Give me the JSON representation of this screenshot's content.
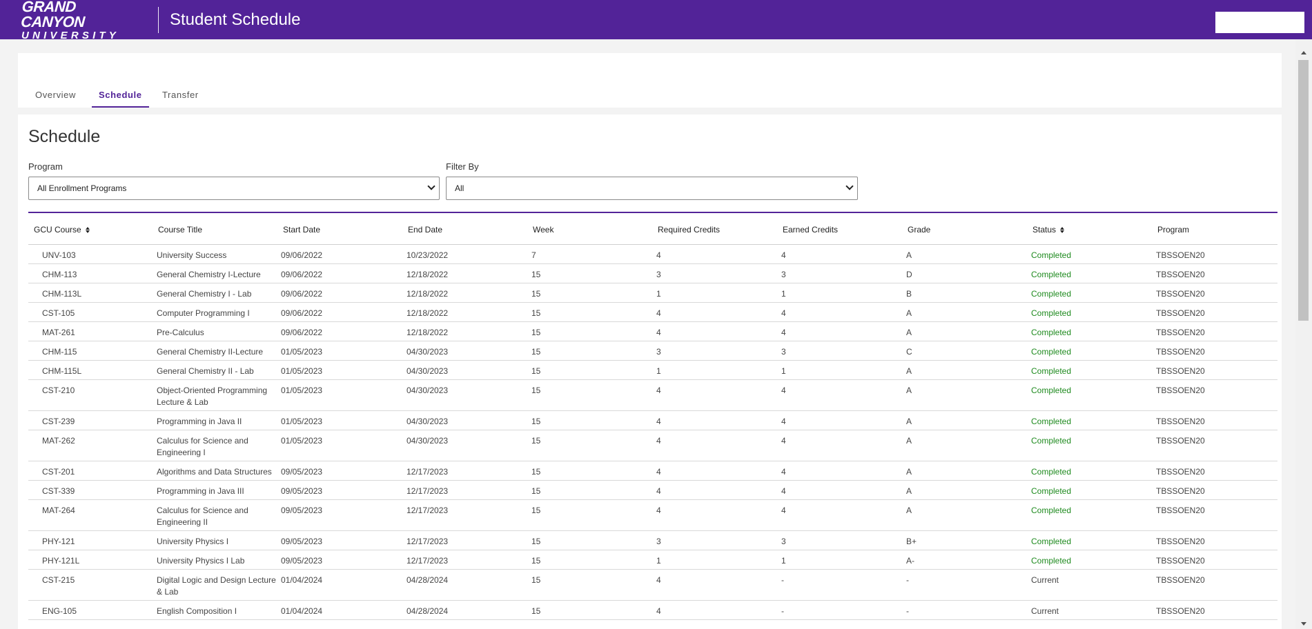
{
  "header": {
    "logo_line1": "GRAND CANYON",
    "logo_line2": "UNIVERSITY",
    "title": "Student Schedule"
  },
  "tabs": [
    {
      "label": "Overview",
      "active": false
    },
    {
      "label": "Schedule",
      "active": true
    },
    {
      "label": "Transfer",
      "active": false
    }
  ],
  "schedule": {
    "title": "Schedule",
    "program_label": "Program",
    "program_value": "All Enrollment Programs",
    "filter_label": "Filter By",
    "filter_value": "All"
  },
  "table": {
    "columns": [
      "GCU Course",
      "Course Title",
      "Start Date",
      "End Date",
      "Week",
      "Required Credits",
      "Earned Credits",
      "Grade",
      "Status",
      "Program"
    ],
    "rows": [
      {
        "course": "UNV-103",
        "title": "University Success",
        "start": "09/06/2022",
        "end": "10/23/2022",
        "week": "7",
        "req": "4",
        "earned": "4",
        "grade": "A",
        "status": "Completed",
        "program": "TBSSOEN20"
      },
      {
        "course": "CHM-113",
        "title": "General Chemistry I-Lecture",
        "start": "09/06/2022",
        "end": "12/18/2022",
        "week": "15",
        "req": "3",
        "earned": "3",
        "grade": "D",
        "status": "Completed",
        "program": "TBSSOEN20"
      },
      {
        "course": "CHM-113L",
        "title": "General Chemistry I - Lab",
        "start": "09/06/2022",
        "end": "12/18/2022",
        "week": "15",
        "req": "1",
        "earned": "1",
        "grade": "B",
        "status": "Completed",
        "program": "TBSSOEN20"
      },
      {
        "course": "CST-105",
        "title": "Computer Programming I",
        "start": "09/06/2022",
        "end": "12/18/2022",
        "week": "15",
        "req": "4",
        "earned": "4",
        "grade": "A",
        "status": "Completed",
        "program": "TBSSOEN20"
      },
      {
        "course": "MAT-261",
        "title": "Pre-Calculus",
        "start": "09/06/2022",
        "end": "12/18/2022",
        "week": "15",
        "req": "4",
        "earned": "4",
        "grade": "A",
        "status": "Completed",
        "program": "TBSSOEN20"
      },
      {
        "course": "CHM-115",
        "title": "General Chemistry II-Lecture",
        "start": "01/05/2023",
        "end": "04/30/2023",
        "week": "15",
        "req": "3",
        "earned": "3",
        "grade": "C",
        "status": "Completed",
        "program": "TBSSOEN20"
      },
      {
        "course": "CHM-115L",
        "title": "General Chemistry II - Lab",
        "start": "01/05/2023",
        "end": "04/30/2023",
        "week": "15",
        "req": "1",
        "earned": "1",
        "grade": "A",
        "status": "Completed",
        "program": "TBSSOEN20"
      },
      {
        "course": "CST-210",
        "title": "Object-Oriented Programming Lecture & Lab",
        "start": "01/05/2023",
        "end": "04/30/2023",
        "week": "15",
        "req": "4",
        "earned": "4",
        "grade": "A",
        "status": "Completed",
        "program": "TBSSOEN20"
      },
      {
        "course": "CST-239",
        "title": "Programming in Java II",
        "start": "01/05/2023",
        "end": "04/30/2023",
        "week": "15",
        "req": "4",
        "earned": "4",
        "grade": "A",
        "status": "Completed",
        "program": "TBSSOEN20"
      },
      {
        "course": "MAT-262",
        "title": "Calculus for Science and Engineering I",
        "start": "01/05/2023",
        "end": "04/30/2023",
        "week": "15",
        "req": "4",
        "earned": "4",
        "grade": "A",
        "status": "Completed",
        "program": "TBSSOEN20"
      },
      {
        "course": "CST-201",
        "title": "Algorithms and Data Structures",
        "start": "09/05/2023",
        "end": "12/17/2023",
        "week": "15",
        "req": "4",
        "earned": "4",
        "grade": "A",
        "status": "Completed",
        "program": "TBSSOEN20"
      },
      {
        "course": "CST-339",
        "title": "Programming in Java III",
        "start": "09/05/2023",
        "end": "12/17/2023",
        "week": "15",
        "req": "4",
        "earned": "4",
        "grade": "A",
        "status": "Completed",
        "program": "TBSSOEN20"
      },
      {
        "course": "MAT-264",
        "title": "Calculus for Science and Engineering II",
        "start": "09/05/2023",
        "end": "12/17/2023",
        "week": "15",
        "req": "4",
        "earned": "4",
        "grade": "A",
        "status": "Completed",
        "program": "TBSSOEN20"
      },
      {
        "course": "PHY-121",
        "title": "University Physics I",
        "start": "09/05/2023",
        "end": "12/17/2023",
        "week": "15",
        "req": "3",
        "earned": "3",
        "grade": "B+",
        "status": "Completed",
        "program": "TBSSOEN20"
      },
      {
        "course": "PHY-121L",
        "title": "University Physics I Lab",
        "start": "09/05/2023",
        "end": "12/17/2023",
        "week": "15",
        "req": "1",
        "earned": "1",
        "grade": "A-",
        "status": "Completed",
        "program": "TBSSOEN20"
      },
      {
        "course": "CST-215",
        "title": "Digital Logic and Design Lecture & Lab",
        "start": "01/04/2024",
        "end": "04/28/2024",
        "week": "15",
        "req": "4",
        "earned": "-",
        "grade": "-",
        "status": "Current",
        "program": "TBSSOEN20"
      },
      {
        "course": "ENG-105",
        "title": "English Composition I",
        "start": "01/04/2024",
        "end": "04/28/2024",
        "week": "15",
        "req": "4",
        "earned": "-",
        "grade": "-",
        "status": "Current",
        "program": "TBSSOEN20"
      }
    ]
  },
  "colors": {
    "brand_purple": "#522398",
    "completed_green": "#1e8a1e"
  }
}
